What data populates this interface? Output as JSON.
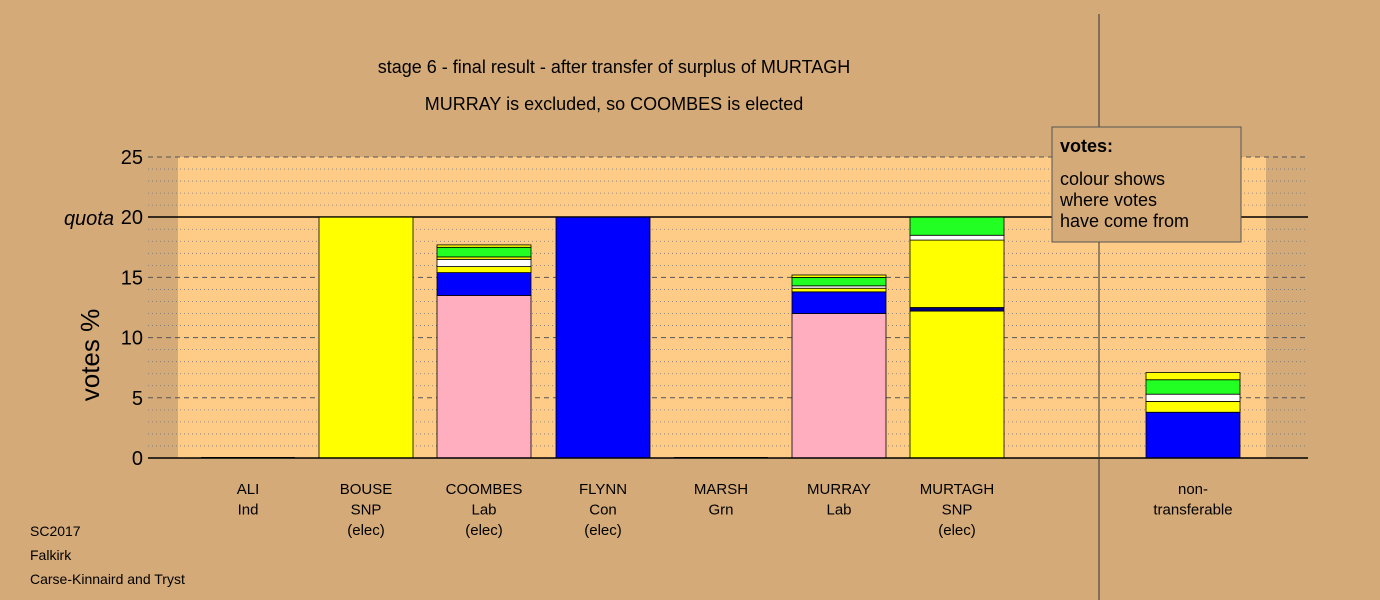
{
  "title_line1": "stage 6 - final result - after transfer of surplus of MURTAGH",
  "title_line2": "MURRAY is excluded, so COOMBES is elected",
  "legend": {
    "heading": "votes:",
    "lines": [
      "colour shows",
      "where votes",
      "have come from"
    ]
  },
  "footer": [
    "SC2017",
    "Falkirk",
    "Carse-Kinnaird and Tryst"
  ],
  "colors": {
    "background": "#d4aa78",
    "plot": "#ffcc88",
    "pink": "#ffaec0",
    "blue": "#0000ff",
    "navy": "#000080",
    "yellow": "#ffff00",
    "white": "#ffffff",
    "green": "#22ff22"
  },
  "chart_data": {
    "type": "bar",
    "stacked": true,
    "ylabel": "votes %",
    "quota_label": "quota",
    "quota": 20,
    "ylim": [
      0,
      25
    ],
    "yticks": [
      0,
      5,
      10,
      15,
      20,
      25
    ],
    "grid": "dashed major, dotted minor",
    "categories": [
      {
        "name": "ALI",
        "party": "Ind",
        "status": ""
      },
      {
        "name": "BOUSE",
        "party": "SNP",
        "status": "(elec)"
      },
      {
        "name": "COOMBES",
        "party": "Lab",
        "status": "(elec)"
      },
      {
        "name": "FLYNN",
        "party": "Con",
        "status": "(elec)"
      },
      {
        "name": "MARSH",
        "party": "Grn",
        "status": ""
      },
      {
        "name": "MURRAY",
        "party": "Lab",
        "status": ""
      },
      {
        "name": "MURTAGH",
        "party": "SNP",
        "status": "(elec)"
      },
      {
        "name": "non-",
        "party": "transferable",
        "status": ""
      }
    ],
    "stacks": [
      [],
      [
        {
          "color": "yellow",
          "value": 20
        }
      ],
      [
        {
          "color": "pink",
          "value": 13.5
        },
        {
          "color": "blue",
          "value": 1.9
        },
        {
          "color": "yellow",
          "value": 0.5
        },
        {
          "color": "white",
          "value": 0.6
        },
        {
          "color": "yellow",
          "value": 0.2
        },
        {
          "color": "green",
          "value": 0.8
        },
        {
          "color": "yellow",
          "value": 0.2
        }
      ],
      [
        {
          "color": "blue",
          "value": 20
        }
      ],
      [],
      [
        {
          "color": "pink",
          "value": 12
        },
        {
          "color": "blue",
          "value": 1.8
        },
        {
          "color": "yellow",
          "value": 0.3
        },
        {
          "color": "white",
          "value": 0.2
        },
        {
          "color": "green",
          "value": 0.7
        },
        {
          "color": "yellow",
          "value": 0.2
        }
      ],
      [
        {
          "color": "yellow",
          "value": 12.2
        },
        {
          "color": "navy",
          "value": 0.3
        },
        {
          "color": "yellow",
          "value": 5.6
        },
        {
          "color": "white",
          "value": 0.4
        },
        {
          "color": "green",
          "value": 1.5
        }
      ],
      [
        {
          "color": "blue",
          "value": 3.8
        },
        {
          "color": "yellow",
          "value": 0.9
        },
        {
          "color": "white",
          "value": 0.6
        },
        {
          "color": "green",
          "value": 1.2
        },
        {
          "color": "yellow",
          "value": 0.6
        }
      ]
    ]
  }
}
